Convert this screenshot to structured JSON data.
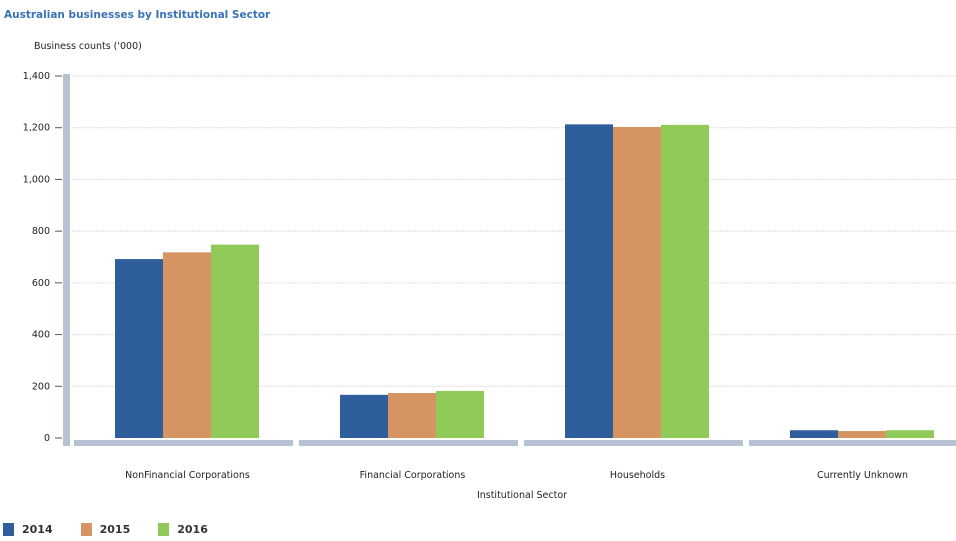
{
  "chart_data": {
    "type": "bar",
    "title": "Australian businesses by Institutional Sector",
    "ylabel": "Business counts ('000)",
    "xlabel": "Institutional Sector",
    "ylim": [
      0,
      1400
    ],
    "yticks": [
      0,
      200,
      400,
      600,
      800,
      1000,
      1200,
      1400
    ],
    "ytick_labels": [
      "0",
      "200",
      "400",
      "600",
      "800",
      "1,000",
      "1,200",
      "1,400"
    ],
    "categories": [
      "NonFinancial Corporations",
      "Financial Corporations",
      "Households",
      "Currently Unknown"
    ],
    "series": [
      {
        "name": "2014",
        "color": "#2f5e9c",
        "values": [
          692,
          167,
          1213,
          30
        ]
      },
      {
        "name": "2015",
        "color": "#d79463",
        "values": [
          718,
          174,
          1203,
          27
        ]
      },
      {
        "name": "2016",
        "color": "#90ca59",
        "values": [
          748,
          182,
          1211,
          30
        ]
      }
    ],
    "grid": true,
    "legend_position": "bottom-left"
  }
}
